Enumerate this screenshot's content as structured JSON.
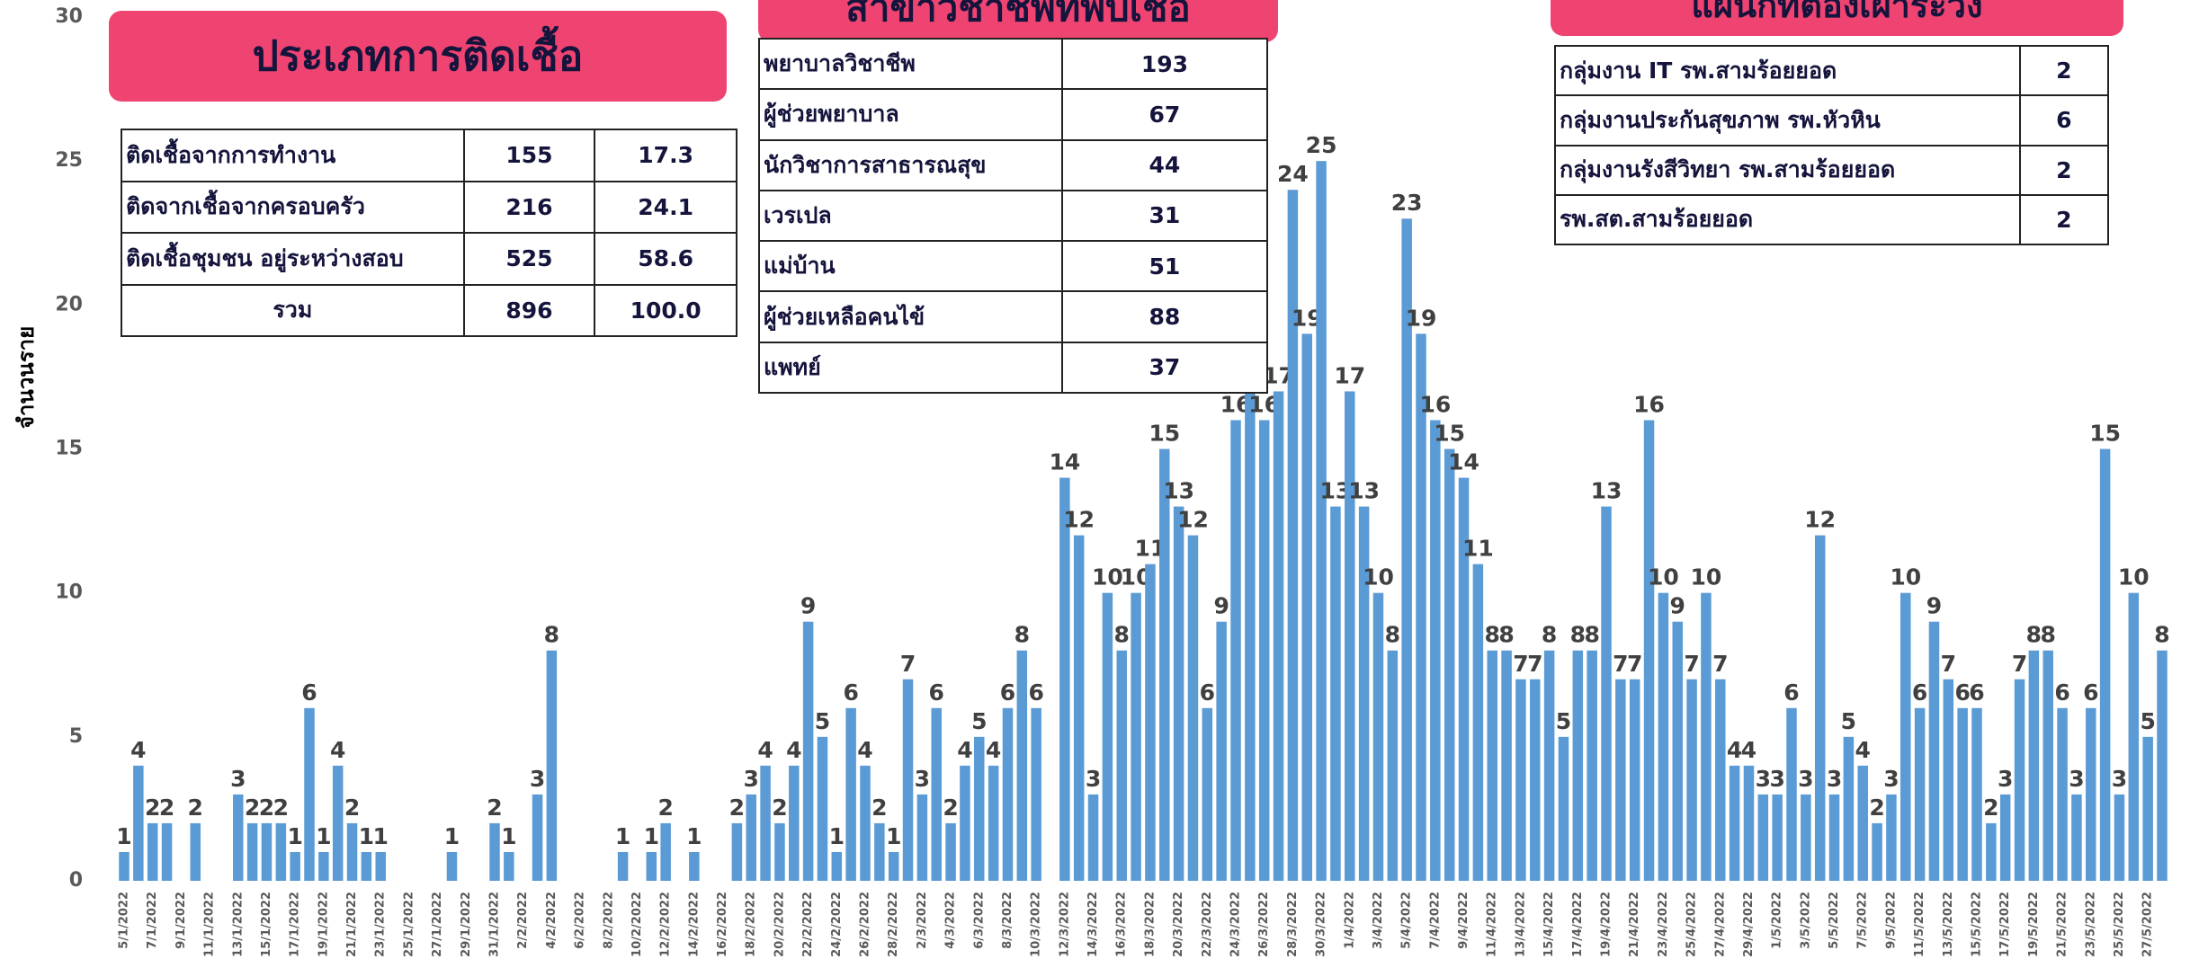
{
  "chart_data": {
    "type": "bar",
    "y_label": "จำนวนราย",
    "color": "#5b9bd5",
    "ylim": [
      0,
      30
    ],
    "yticks": [
      0,
      5,
      10,
      15,
      20,
      25,
      30
    ],
    "grid": false,
    "categories": [
      "5/1/2022",
      null,
      "7/1/2022",
      null,
      "9/1/2022",
      null,
      "11/1/2022",
      null,
      "13/1/2022",
      null,
      "15/1/2022",
      null,
      "17/1/2022",
      null,
      "19/1/2022",
      null,
      "21/1/2022",
      null,
      "23/1/2022",
      null,
      "25/1/2022",
      null,
      "27/1/2022",
      null,
      "29/1/2022",
      null,
      "31/1/2022",
      null,
      "2/2/2022",
      null,
      "4/2/2022",
      null,
      "6/2/2022",
      null,
      "8/2/2022",
      null,
      "10/2/2022",
      null,
      "12/2/2022",
      null,
      "14/2/2022",
      null,
      "16/2/2022",
      null,
      "18/2/2022",
      null,
      "20/2/2022",
      null,
      "22/2/2022",
      null,
      "24/2/2022",
      null,
      "26/2/2022",
      null,
      "28/2/2022",
      null,
      "2/3/2022",
      null,
      "4/3/2022",
      null,
      "6/3/2022",
      null,
      "8/3/2022",
      null,
      "10/3/2022",
      null,
      "12/3/2022",
      null,
      "14/3/2022",
      null,
      "16/3/2022",
      null,
      "18/3/2022",
      null,
      "20/3/2022",
      null,
      "22/3/2022",
      null,
      "24/3/2022",
      null,
      "26/3/2022",
      null,
      "28/3/2022",
      null,
      "30/3/2022",
      null,
      "1/4/2022",
      null,
      "3/4/2022",
      null,
      "5/4/2022",
      null,
      "7/4/2022",
      null,
      "9/4/2022",
      null,
      "11/4/2022",
      null,
      "13/4/2022",
      null,
      "15/4/2022",
      null,
      "17/4/2022",
      null,
      "19/4/2022",
      null,
      "21/4/2022",
      null,
      "23/4/2022",
      null,
      "25/4/2022",
      null,
      "27/4/2022",
      null,
      "29/4/2022",
      null,
      "1/5/2022",
      null,
      "3/5/2022",
      null,
      "5/5/2022",
      null,
      "7/5/2022",
      null,
      "9/5/2022",
      null,
      "11/5/2022",
      null,
      "13/5/2022",
      null,
      "15/5/2022",
      null,
      "17/5/2022",
      null,
      "19/5/2022",
      null,
      "21/5/2022",
      null,
      "23/5/2022",
      null,
      "25/5/2022",
      null,
      "27/5/2022",
      null
    ],
    "values": [
      1,
      4,
      2,
      2,
      0,
      2,
      0,
      0,
      3,
      2,
      2,
      2,
      1,
      6,
      1,
      4,
      2,
      1,
      1,
      0,
      0,
      0,
      0,
      1,
      0,
      0,
      2,
      1,
      0,
      3,
      8,
      0,
      0,
      0,
      0,
      1,
      0,
      1,
      2,
      0,
      1,
      0,
      0,
      2,
      3,
      4,
      2,
      4,
      9,
      5,
      1,
      6,
      4,
      2,
      1,
      7,
      3,
      6,
      2,
      4,
      5,
      4,
      6,
      8,
      6,
      0,
      14,
      12,
      3,
      10,
      8,
      10,
      11,
      15,
      13,
      12,
      6,
      9,
      16,
      22,
      16,
      17,
      24,
      19,
      25,
      13,
      17,
      13,
      10,
      8,
      23,
      19,
      16,
      15,
      14,
      11,
      8,
      8,
      7,
      7,
      8,
      5,
      8,
      8,
      13,
      7,
      7,
      16,
      10,
      9,
      7,
      10,
      7,
      4,
      4,
      3,
      3,
      6,
      3,
      12,
      3,
      5,
      4,
      2,
      3,
      10,
      6,
      9,
      7,
      6,
      6,
      2,
      3,
      7,
      8,
      8,
      6,
      3,
      6,
      15,
      3,
      10,
      5,
      8
    ]
  },
  "tables": [
    {
      "header": "ประเภทการติดเชื้อ",
      "rows": [
        [
          "ติดเชื้อจากการทำงาน",
          "155",
          "17.3"
        ],
        [
          "ติดจากเชื้อจากครอบครัว",
          "216",
          "24.1"
        ],
        [
          "ติดเชื้อชุมชน อยู่ระหว่างสอบ",
          "525",
          "58.6"
        ],
        [
          "รวม",
          "896",
          "100.0"
        ]
      ]
    },
    {
      "header": "สาขาวิชาชีพที่พบเชื้อ",
      "rows": [
        [
          "พยาบาลวิชาชีพ",
          "193"
        ],
        [
          "ผู้ช่วยพยาบาล",
          "67"
        ],
        [
          "นักวิชาการสาธารณสุข",
          "44"
        ],
        [
          "เวรเปล",
          "31"
        ],
        [
          "แม่บ้าน",
          "51"
        ],
        [
          "ผู้ช่วยเหลือคนไข้",
          "88"
        ],
        [
          "แพทย์",
          "37"
        ]
      ]
    },
    {
      "header": "แผนกที่ต้องเฝ้าระวัง",
      "rows": [
        [
          "กลุ่มงาน IT รพ.สามร้อยยอด",
          "2"
        ],
        [
          "กลุ่มงานประกันสุขภาพ รพ.หัวหิน",
          "6"
        ],
        [
          "กลุ่มงานรังสีวิทยา รพ.สามร้อยยอด",
          "2"
        ],
        [
          "รพ.สต.สามร้อยยอด",
          "2"
        ]
      ]
    }
  ]
}
